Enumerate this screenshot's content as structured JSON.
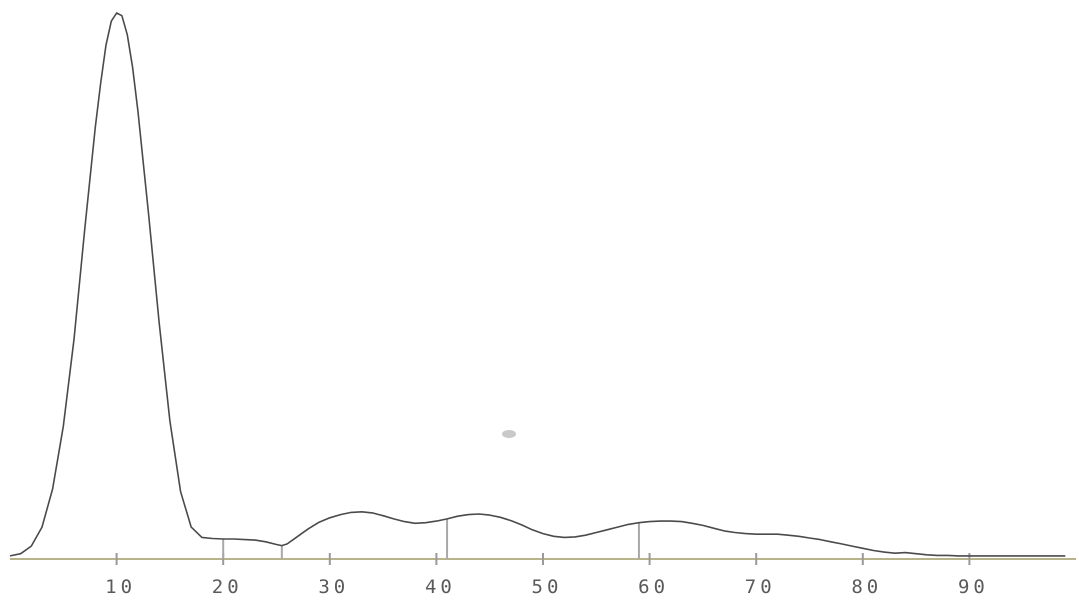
{
  "chart_data": {
    "type": "line",
    "title": "",
    "xlabel": "",
    "ylabel": "",
    "xlim": [
      0,
      100
    ],
    "ylim": [
      0,
      100
    ],
    "grid": false,
    "x_ticks": [
      10,
      20,
      30,
      40,
      50,
      60,
      70,
      80,
      90
    ],
    "x_tick_labels": [
      "10",
      "20",
      "30",
      "40",
      "50",
      "60",
      "70",
      "80",
      "90"
    ],
    "segment_markers": [
      20,
      25.5,
      41,
      59
    ],
    "colors": {
      "trace": "#4a4a4a",
      "baseline": "#b8b38a",
      "tail": "#b5a55a"
    },
    "series": [
      {
        "x": [
          0,
          1,
          2,
          3,
          4,
          5,
          6,
          7,
          8,
          8.5,
          9,
          9.5,
          10,
          10.5,
          11,
          11.5,
          12,
          13,
          14,
          15,
          16,
          17,
          18,
          19,
          20,
          21,
          22,
          23,
          24,
          25,
          25.5,
          26,
          27,
          28,
          29,
          30,
          31,
          32,
          33,
          34,
          35,
          36,
          37,
          38,
          39,
          40,
          41,
          42,
          43,
          44,
          45,
          46,
          47,
          48,
          49,
          50,
          51,
          52,
          53,
          54,
          55,
          56,
          57,
          58,
          59,
          60,
          61,
          62,
          63,
          64,
          65,
          66,
          67,
          68,
          69,
          70,
          71,
          72,
          73,
          74,
          75,
          76,
          77,
          78,
          79,
          80,
          81,
          82,
          83,
          84,
          85,
          86,
          87,
          88,
          89,
          90,
          91,
          92,
          93,
          94,
          95,
          96,
          97,
          98,
          99
        ],
        "y": [
          0.2,
          0.6,
          2.0,
          5.5,
          12.5,
          24,
          40,
          60,
          79,
          87,
          94,
          98.5,
          100,
          99.5,
          96,
          90,
          82,
          63,
          43,
          25,
          12,
          5.5,
          3.6,
          3.4,
          3.3,
          3.3,
          3.2,
          3.1,
          2.8,
          2.3,
          2.1,
          2.4,
          3.8,
          5.2,
          6.4,
          7.2,
          7.8,
          8.2,
          8.3,
          8.1,
          7.6,
          7.0,
          6.5,
          6.2,
          6.3,
          6.6,
          7.0,
          7.5,
          7.8,
          7.9,
          7.7,
          7.3,
          6.7,
          5.9,
          5.0,
          4.3,
          3.8,
          3.6,
          3.7,
          4.0,
          4.5,
          5.0,
          5.5,
          6.0,
          6.3,
          6.5,
          6.6,
          6.6,
          6.5,
          6.2,
          5.8,
          5.3,
          4.8,
          4.5,
          4.3,
          4.2,
          4.2,
          4.2,
          4.0,
          3.8,
          3.5,
          3.2,
          2.8,
          2.4,
          2.0,
          1.6,
          1.2,
          0.9,
          0.7,
          0.8,
          0.6,
          0.4,
          0.3,
          0.3,
          0.2,
          0.2,
          0.2,
          0.2,
          0.2,
          0.2,
          0.2,
          0.2,
          0.2,
          0.2,
          0.2
        ]
      }
    ]
  }
}
